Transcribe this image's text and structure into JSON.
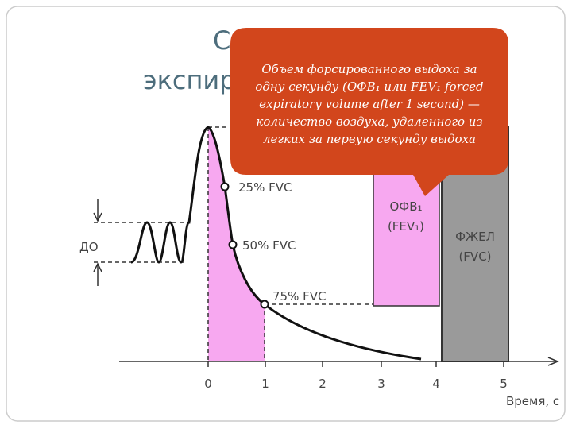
{
  "title": {
    "line1": "С",
    "line2": "экспир"
  },
  "callout": {
    "lines": [
      "Объем форсированного выдоха за",
      "одну секунду (ОФВ₁ или FEV₁ forced",
      "expiratory volume after 1 second) —",
      "количество воздуха, удаленного из",
      "легких за первую секунду выдоха"
    ]
  },
  "diagram": {
    "points": [
      "25% FVC",
      "50% FVC",
      "75% FVC"
    ],
    "tidal_label": "ДО",
    "fev_box": [
      "ОФВ₁",
      "(FEV₁)"
    ],
    "fvc_box": [
      "ФЖЕЛ",
      "(FVC)"
    ],
    "x_ticks": [
      "0",
      "1",
      "2",
      "3",
      "4",
      "5"
    ],
    "x_label": "Время, с"
  }
}
